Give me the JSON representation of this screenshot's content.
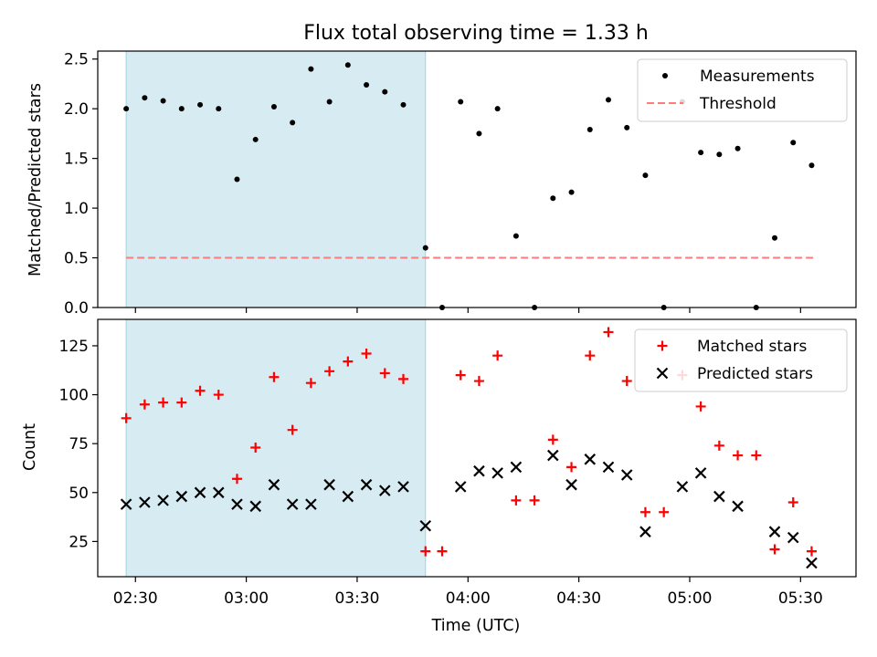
{
  "colors": {
    "measurement": "#000000",
    "threshold": "#ff7b7b",
    "matched": "#ff0000",
    "predicted": "#000000",
    "shade_fill": "#add8e6",
    "shade_edge": "#9fd3dc"
  },
  "chart_data": [
    {
      "type": "scatter",
      "panel": "top",
      "title": "Flux total observing time = 1.33 h",
      "xlabel": "",
      "ylabel": "Matched/Predicted stars",
      "xlim": [
        2.33,
        5.75
      ],
      "ylim": [
        0.0,
        2.58
      ],
      "yticks": [
        {
          "value": 0.0,
          "label": "0.0"
        },
        {
          "value": 0.5,
          "label": "0.5"
        },
        {
          "value": 1.0,
          "label": "1.0"
        },
        {
          "value": 1.5,
          "label": "1.5"
        },
        {
          "value": 2.0,
          "label": "2.0"
        },
        {
          "value": 2.5,
          "label": "2.5"
        }
      ],
      "shaded_interval": [
        2.4583,
        3.8083
      ],
      "threshold": {
        "value": 0.5,
        "x_range": [
          2.4583,
          5.5583
        ]
      },
      "legend": {
        "position": "top-right",
        "entries": [
          "Measurements",
          "Threshold"
        ]
      },
      "series": [
        {
          "name": "Measurements",
          "marker": "dot",
          "x": [
            2.4583,
            2.5417,
            2.625,
            2.7083,
            2.7917,
            2.875,
            2.9583,
            3.0417,
            3.125,
            3.2083,
            3.2917,
            3.375,
            3.4583,
            3.5417,
            3.625,
            3.7083,
            3.8083,
            3.8833,
            3.9667,
            4.05,
            4.1333,
            4.2167,
            4.3,
            4.3833,
            4.4667,
            4.55,
            4.6333,
            4.7167,
            4.8,
            4.8833,
            4.9667,
            5.05,
            5.1333,
            5.2167,
            5.3,
            5.3833,
            5.4667,
            5.55
          ],
          "y": [
            2.0,
            2.11,
            2.08,
            2.0,
            2.04,
            2.0,
            1.29,
            1.69,
            2.02,
            1.86,
            2.4,
            2.07,
            2.44,
            2.24,
            2.17,
            2.04,
            0.6,
            0.0,
            2.07,
            1.75,
            2.0,
            0.72,
            0.0,
            1.1,
            1.16,
            1.79,
            2.09,
            1.81,
            1.33,
            0.0,
            2.07,
            1.56,
            1.54,
            1.6,
            0.0,
            0.7,
            1.66,
            1.43
          ]
        }
      ]
    },
    {
      "type": "scatter",
      "panel": "bottom",
      "title": "",
      "xlabel": "Time (UTC)",
      "ylabel": "Count",
      "xlim": [
        2.33,
        5.75
      ],
      "ylim": [
        7.0,
        138.5
      ],
      "xticks": [
        {
          "value": 2.5,
          "label": "02:30"
        },
        {
          "value": 3.0,
          "label": "03:00"
        },
        {
          "value": 3.5,
          "label": "03:30"
        },
        {
          "value": 4.0,
          "label": "04:00"
        },
        {
          "value": 4.5,
          "label": "04:30"
        },
        {
          "value": 5.0,
          "label": "05:00"
        },
        {
          "value": 5.5,
          "label": "05:30"
        }
      ],
      "yticks": [
        {
          "value": 25,
          "label": "25"
        },
        {
          "value": 50,
          "label": "50"
        },
        {
          "value": 75,
          "label": "75"
        },
        {
          "value": 100,
          "label": "100"
        },
        {
          "value": 125,
          "label": "125"
        }
      ],
      "shaded_interval": [
        2.4583,
        3.8083
      ],
      "legend": {
        "position": "top-right",
        "entries": [
          "Matched stars",
          "Predicted stars"
        ]
      },
      "series": [
        {
          "name": "Matched stars",
          "marker": "plus",
          "x": [
            2.4583,
            2.5417,
            2.625,
            2.7083,
            2.7917,
            2.875,
            2.9583,
            3.0417,
            3.125,
            3.2083,
            3.2917,
            3.375,
            3.4583,
            3.5417,
            3.625,
            3.7083,
            3.8083,
            3.8833,
            3.9667,
            4.05,
            4.1333,
            4.2167,
            4.3,
            4.3833,
            4.4667,
            4.55,
            4.6333,
            4.7167,
            4.8,
            4.8833,
            4.9667,
            5.05,
            5.1333,
            5.2167,
            5.3,
            5.3833,
            5.4667,
            5.55
          ],
          "y": [
            88,
            95,
            96,
            96,
            102,
            100,
            57,
            73,
            109,
            82,
            106,
            112,
            117,
            121,
            111,
            108,
            20,
            20,
            110,
            107,
            120,
            46,
            46,
            77,
            63,
            120,
            132,
            107,
            40,
            40,
            110,
            94,
            74,
            69,
            69,
            21,
            45,
            20
          ]
        },
        {
          "name": "Predicted stars",
          "marker": "x",
          "x": [
            2.4583,
            2.5417,
            2.625,
            2.7083,
            2.7917,
            2.875,
            2.9583,
            3.0417,
            3.125,
            3.2083,
            3.2917,
            3.375,
            3.4583,
            3.5417,
            3.625,
            3.7083,
            3.8083,
            3.9667,
            4.05,
            4.1333,
            4.2167,
            4.3833,
            4.4667,
            4.55,
            4.6333,
            4.7167,
            4.8,
            4.9667,
            5.05,
            5.1333,
            5.2167,
            5.3833,
            5.4667,
            5.55
          ],
          "y": [
            44,
            45,
            46,
            48,
            50,
            50,
            44,
            43,
            54,
            44,
            44,
            54,
            48,
            54,
            51,
            53,
            33,
            53,
            61,
            60,
            63,
            69,
            54,
            67,
            63,
            59,
            30,
            53,
            60,
            48,
            43,
            30,
            27,
            14
          ]
        }
      ]
    }
  ]
}
